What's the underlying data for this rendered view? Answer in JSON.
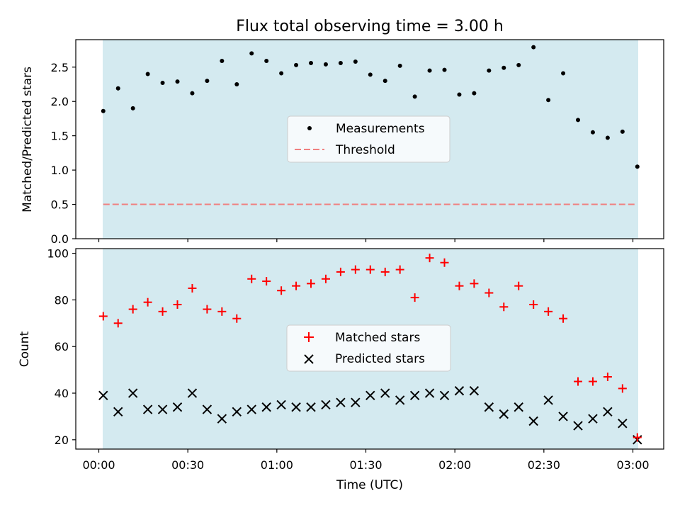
{
  "title": "Flux total observing time = 3.00 h",
  "colors": {
    "background_shade": "#d4eaf0",
    "measurement": "#000000",
    "threshold": "#f08080",
    "matched": "#ff0000",
    "predicted": "#000000"
  },
  "chart_data": [
    {
      "type": "scatter",
      "ylabel": "Matched/Predicted stars",
      "ylim": [
        0,
        2.9
      ],
      "yticks": [
        0.0,
        0.5,
        1.0,
        1.5,
        2.0,
        2.5
      ],
      "ytick_labels": [
        "0.0",
        "0.5",
        "1.0",
        "1.5",
        "2.0",
        "2.5"
      ],
      "legend": {
        "placement": "center",
        "entries": [
          "Measurements",
          "Threshold"
        ]
      },
      "shaded_span_min": [
        1.5,
        181.5
      ],
      "threshold": 0.5,
      "series": [
        {
          "name": "Measurements",
          "x_min": [
            1.5,
            6.5,
            11.5,
            16.5,
            21.5,
            26.5,
            31.5,
            36.5,
            41.5,
            46.5,
            51.5,
            56.5,
            61.5,
            66.5,
            71.5,
            76.5,
            81.5,
            86.5,
            91.5,
            96.5,
            101.5,
            106.5,
            111.5,
            116.5,
            121.5,
            126.5,
            131.5,
            136.5,
            141.5,
            146.5,
            151.5,
            156.5,
            161.5,
            166.5,
            171.5,
            176.5,
            181.5
          ],
          "values": [
            1.86,
            2.19,
            1.9,
            2.4,
            2.27,
            2.29,
            2.12,
            2.3,
            2.59,
            2.25,
            2.7,
            2.59,
            2.41,
            2.53,
            2.56,
            2.54,
            2.56,
            2.58,
            2.39,
            2.3,
            2.52,
            2.07,
            2.45,
            2.46,
            2.1,
            2.12,
            2.45,
            2.49,
            2.53,
            2.79,
            2.02,
            2.41,
            1.73,
            1.55,
            1.47,
            1.56,
            1.05
          ]
        }
      ]
    },
    {
      "type": "scatter",
      "ylabel": "Count",
      "xlabel": "Time (UTC)",
      "ylim": [
        16,
        102
      ],
      "yticks": [
        20,
        40,
        60,
        80,
        100
      ],
      "xticks_min": [
        0,
        30,
        60,
        90,
        120,
        150,
        180
      ],
      "xtick_labels": [
        "00:00",
        "00:30",
        "01:00",
        "01:30",
        "02:00",
        "02:30",
        "03:00"
      ],
      "legend": {
        "placement": "center",
        "entries": [
          "Matched stars",
          "Predicted stars"
        ]
      },
      "shaded_span_min": [
        1.5,
        181.5
      ],
      "series": [
        {
          "name": "Matched stars",
          "marker": "+",
          "x_min": [
            1.5,
            6.5,
            11.5,
            16.5,
            21.5,
            26.5,
            31.5,
            36.5,
            41.5,
            46.5,
            51.5,
            56.5,
            61.5,
            66.5,
            71.5,
            76.5,
            81.5,
            86.5,
            91.5,
            96.5,
            101.5,
            106.5,
            111.5,
            116.5,
            121.5,
            126.5,
            131.5,
            136.5,
            141.5,
            146.5,
            151.5,
            156.5,
            161.5,
            166.5,
            171.5,
            176.5,
            181.5
          ],
          "values": [
            73,
            70,
            76,
            79,
            75,
            78,
            85,
            76,
            75,
            72,
            89,
            88,
            84,
            86,
            87,
            89,
            92,
            93,
            93,
            92,
            93,
            81,
            98,
            96,
            86,
            87,
            83,
            77,
            86,
            78,
            75,
            72,
            45,
            45,
            47,
            42,
            21
          ]
        },
        {
          "name": "Predicted stars",
          "marker": "x",
          "x_min": [
            1.5,
            6.5,
            11.5,
            16.5,
            21.5,
            26.5,
            31.5,
            36.5,
            41.5,
            46.5,
            51.5,
            56.5,
            61.5,
            66.5,
            71.5,
            76.5,
            81.5,
            86.5,
            91.5,
            96.5,
            101.5,
            106.5,
            111.5,
            116.5,
            121.5,
            126.5,
            131.5,
            136.5,
            141.5,
            146.5,
            151.5,
            156.5,
            161.5,
            166.5,
            171.5,
            176.5,
            181.5
          ],
          "values": [
            39,
            32,
            40,
            33,
            33,
            34,
            40,
            33,
            29,
            32,
            33,
            34,
            35,
            34,
            34,
            35,
            36,
            36,
            39,
            40,
            37,
            39,
            40,
            39,
            41,
            41,
            34,
            31,
            34,
            28,
            37,
            30,
            26,
            29,
            32,
            27,
            20
          ]
        }
      ]
    }
  ]
}
